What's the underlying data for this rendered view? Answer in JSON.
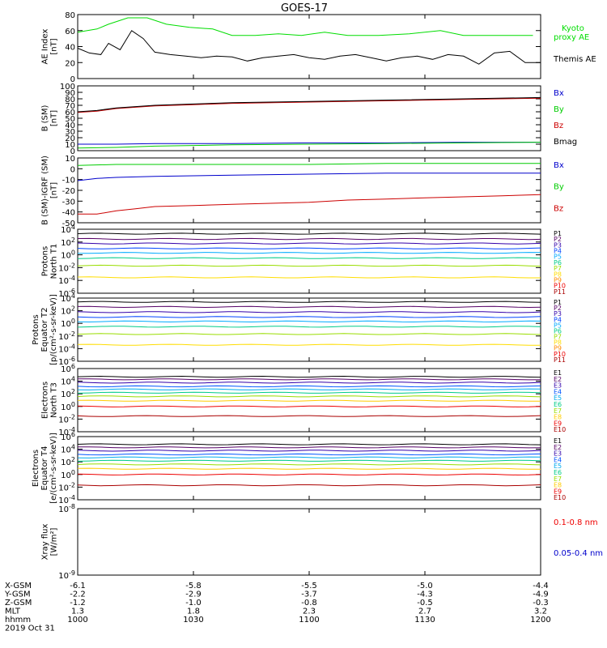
{
  "title": "GOES-17",
  "chart_data": [
    {
      "id": "ae",
      "type": "line",
      "ylabel": [
        "AE Index",
        "[nT]"
      ],
      "ylim": [
        0,
        80
      ],
      "ticks": [
        "0",
        "20",
        "40",
        "60",
        "80"
      ],
      "tick_values": [
        0,
        20,
        40,
        60,
        80
      ],
      "scale": "linear",
      "series": [
        {
          "name": "Kyoto proxy AE",
          "label": [
            "Kyoto",
            "proxy AE"
          ],
          "color": "#00dd00",
          "x": [
            0,
            5,
            8,
            13,
            18,
            23,
            29,
            35,
            40,
            46,
            52,
            58,
            64,
            70,
            78,
            86,
            94,
            100,
            108,
            118
          ],
          "y": [
            58,
            62,
            68,
            76,
            76,
            68,
            64,
            62,
            54,
            54,
            56,
            54,
            58,
            54,
            54,
            56,
            60,
            54,
            54,
            54
          ]
        },
        {
          "name": "Themis AE",
          "label": [
            "Themis AE"
          ],
          "color": "#000000",
          "x": [
            0,
            3,
            6,
            8,
            11,
            14,
            17,
            20,
            24,
            28,
            32,
            36,
            40,
            44,
            48,
            52,
            56,
            60,
            64,
            68,
            72,
            76,
            80,
            84,
            88,
            92,
            96,
            100,
            104,
            108,
            112,
            116,
            120
          ],
          "y": [
            38,
            32,
            30,
            44,
            36,
            60,
            50,
            33,
            30,
            28,
            26,
            28,
            27,
            22,
            26,
            28,
            30,
            26,
            24,
            28,
            30,
            26,
            22,
            26,
            28,
            24,
            30,
            28,
            18,
            32,
            34,
            20,
            20
          ]
        }
      ]
    },
    {
      "id": "bsm",
      "type": "line",
      "ylabel": [
        "B (SM)",
        "[nT]"
      ],
      "ylim": [
        0,
        100
      ],
      "ticks": [
        "0",
        "10",
        "20",
        "30",
        "40",
        "50",
        "60",
        "70",
        "80",
        "90",
        "100"
      ],
      "tick_values": [
        0,
        10,
        20,
        30,
        40,
        50,
        60,
        70,
        80,
        90,
        100
      ],
      "scale": "linear",
      "series": [
        {
          "name": "Bx",
          "color": "#0000cc",
          "x": [
            0,
            10,
            20,
            40,
            60,
            80,
            100,
            120
          ],
          "y": [
            10,
            10,
            11,
            11,
            12,
            12,
            13,
            13
          ]
        },
        {
          "name": "By",
          "color": "#00cc00",
          "x": [
            0,
            10,
            20,
            40,
            60,
            80,
            100,
            120
          ],
          "y": [
            4,
            5,
            7,
            9,
            10,
            11,
            12,
            13
          ]
        },
        {
          "name": "Bz",
          "color": "#cc0000",
          "x": [
            0,
            5,
            10,
            15,
            20,
            30,
            40,
            60,
            80,
            100,
            120
          ],
          "y": [
            59,
            61,
            65,
            67,
            69,
            71,
            73,
            75,
            77,
            79,
            81
          ]
        },
        {
          "name": "Bmag",
          "color": "#000000",
          "x": [
            0,
            5,
            10,
            15,
            20,
            30,
            40,
            60,
            80,
            100,
            120
          ],
          "y": [
            60,
            62,
            66,
            68,
            70,
            72,
            74,
            76,
            78,
            80,
            82
          ]
        }
      ]
    },
    {
      "id": "bigrf",
      "type": "line",
      "ylabel": [
        "B (SM)-IGRF (SM)",
        "[nT]"
      ],
      "ylim": [
        -50,
        10
      ],
      "ticks": [
        "10",
        "0",
        "-10",
        "-20",
        "-30",
        "-40",
        "-50"
      ],
      "tick_values": [
        10,
        0,
        -10,
        -20,
        -30,
        -40,
        -50
      ],
      "scale": "linear",
      "series": [
        {
          "name": "Bx",
          "color": "#0000cc",
          "x": [
            0,
            5,
            10,
            20,
            40,
            60,
            80,
            100,
            120
          ],
          "y": [
            -11,
            -9,
            -8,
            -7,
            -6,
            -5,
            -4,
            -4,
            -4
          ]
        },
        {
          "name": "By",
          "color": "#00cc00",
          "x": [
            0,
            10,
            20,
            40,
            60,
            80,
            100,
            120
          ],
          "y": [
            3,
            4,
            4,
            4,
            4,
            5,
            5,
            5
          ]
        },
        {
          "name": "Bz",
          "color": "#cc0000",
          "x": [
            0,
            5,
            10,
            15,
            20,
            30,
            40,
            50,
            60,
            70,
            80,
            90,
            100,
            110,
            120
          ],
          "y": [
            -42,
            -42,
            -39,
            -37,
            -35,
            -34,
            -33,
            -32,
            -31,
            -29,
            -28,
            -27,
            -26,
            -25,
            -24
          ]
        }
      ]
    },
    {
      "id": "protons_t1",
      "type": "line",
      "ylabel": [
        "Protons",
        "North T1"
      ],
      "ylim": [
        1e-06,
        10000.0
      ],
      "ticks": [
        "10^4",
        "10^2",
        "10^0",
        "10^-2",
        "10^-4",
        "10^-6"
      ],
      "tick_values": [
        10000.0,
        100.0,
        1.0,
        0.01,
        0.0001,
        1e-06
      ],
      "scale": "log",
      "series": [
        {
          "name": "P1",
          "color": "#000000",
          "y": [
            2000
          ]
        },
        {
          "name": "P2",
          "color": "#550066",
          "y": [
            300
          ]
        },
        {
          "name": "P3",
          "color": "#3300aa",
          "y": [
            60
          ]
        },
        {
          "name": "P4",
          "color": "#0044ff",
          "y": [
            10
          ]
        },
        {
          "name": "P5",
          "color": "#00aaff",
          "y": [
            2
          ]
        },
        {
          "name": "P6",
          "color": "#00cc88",
          "y": [
            0.3
          ]
        },
        {
          "name": "P7",
          "color": "#99dd00",
          "y": [
            0.02
          ]
        },
        {
          "name": "P8",
          "color": "#ffdd00",
          "y": [
            0.0003
          ]
        },
        {
          "name": "P9",
          "color": "#ff8800",
          "y": []
        },
        {
          "name": "P10",
          "color": "#ee0000",
          "y": []
        },
        {
          "name": "P11",
          "color": "#aa0000",
          "y": []
        }
      ]
    },
    {
      "id": "protons_t2",
      "type": "line",
      "ylabel": [
        "Protons",
        "Equator T2",
        "[p/(cm²-s-sr-keV)]"
      ],
      "ylim": [
        1e-06,
        10000.0
      ],
      "ticks": [
        "10^4",
        "10^2",
        "10^0",
        "10^-2",
        "10^-4",
        "10^-6"
      ],
      "tick_values": [
        10000.0,
        100.0,
        1.0,
        0.01,
        0.0001,
        1e-06
      ],
      "scale": "log",
      "series": [
        {
          "name": "P1",
          "color": "#000000",
          "y": [
            2500
          ]
        },
        {
          "name": "P2",
          "color": "#550066",
          "y": [
            400
          ]
        },
        {
          "name": "P3",
          "color": "#3300aa",
          "y": [
            60
          ]
        },
        {
          "name": "P4",
          "color": "#0044ff",
          "y": [
            10
          ]
        },
        {
          "name": "P5",
          "color": "#00aaff",
          "y": [
            2
          ]
        },
        {
          "name": "P6",
          "color": "#00cc88",
          "y": [
            0.3
          ]
        },
        {
          "name": "P7",
          "color": "#99dd00",
          "y": [
            0.02
          ]
        },
        {
          "name": "P8",
          "color": "#ffdd00",
          "y": [
            0.0004
          ]
        },
        {
          "name": "P9",
          "color": "#ff8800",
          "y": []
        },
        {
          "name": "P10",
          "color": "#ee0000",
          "y": []
        },
        {
          "name": "P11",
          "color": "#aa0000",
          "y": []
        }
      ]
    },
    {
      "id": "electrons_t3",
      "type": "line",
      "ylabel": [
        "Electrons",
        "North T3"
      ],
      "ylim": [
        0.0001,
        1000000.0
      ],
      "ticks": [
        "10^6",
        "10^4",
        "10^2",
        "10^0",
        "10^-2",
        "10^-4"
      ],
      "tick_values": [
        1000000.0,
        10000.0,
        100.0,
        1.0,
        0.01,
        0.0001
      ],
      "scale": "log",
      "series": [
        {
          "name": "E1",
          "color": "#000000",
          "y": [
            50000
          ]
        },
        {
          "name": "E2",
          "color": "#550066",
          "y": [
            20000
          ]
        },
        {
          "name": "E3",
          "color": "#3300aa",
          "y": [
            6000
          ]
        },
        {
          "name": "E4",
          "color": "#0055ff",
          "y": [
            1500
          ]
        },
        {
          "name": "E5",
          "color": "#00aaee",
          "y": [
            500
          ]
        },
        {
          "name": "E6",
          "color": "#00cc88",
          "y": [
            150
          ]
        },
        {
          "name": "E7",
          "color": "#99dd00",
          "y": [
            40
          ]
        },
        {
          "name": "E8",
          "color": "#ffcc00",
          "y": [
            8
          ]
        },
        {
          "name": "E9",
          "color": "#ee0000",
          "y": [
            1
          ]
        },
        {
          "name": "E10",
          "color": "#aa0000",
          "y": [
            0.03
          ]
        }
      ]
    },
    {
      "id": "electrons_t4",
      "type": "line",
      "ylabel": [
        "Electrons",
        "Equator T4",
        "[e/(cm²-s-sr-keV)]"
      ],
      "ylim": [
        0.0001,
        1000000.0
      ],
      "ticks": [
        "10^6",
        "10^4",
        "10^2",
        "10^0",
        "10^-2",
        "10^-4"
      ],
      "tick_values": [
        1000000.0,
        10000.0,
        100.0,
        1.0,
        0.01,
        0.0001
      ],
      "scale": "log",
      "series": [
        {
          "name": "E1",
          "color": "#000000",
          "y": [
            60000
          ]
        },
        {
          "name": "E2",
          "color": "#550066",
          "y": [
            20000
          ]
        },
        {
          "name": "E3",
          "color": "#3300aa",
          "y": [
            6000
          ]
        },
        {
          "name": "E4",
          "color": "#0055ff",
          "y": [
            1500
          ]
        },
        {
          "name": "E5",
          "color": "#00aaee",
          "y": [
            500
          ]
        },
        {
          "name": "E6",
          "color": "#00cc88",
          "y": [
            150
          ]
        },
        {
          "name": "E7",
          "color": "#99dd00",
          "y": [
            40
          ]
        },
        {
          "name": "E8",
          "color": "#ffcc00",
          "y": [
            8
          ]
        },
        {
          "name": "E9",
          "color": "#ee0000",
          "y": [
            1
          ]
        },
        {
          "name": "E10",
          "color": "#aa0000",
          "y": [
            0.02
          ]
        }
      ]
    },
    {
      "id": "xray",
      "type": "line",
      "ylabel": [
        "Xray flux",
        "[W/m²]"
      ],
      "ylim": [
        1e-09,
        1e-08
      ],
      "ticks": [
        "10^-8",
        "10^-9"
      ],
      "tick_values": [
        1e-08,
        1e-09
      ],
      "scale": "log",
      "series": [
        {
          "name": "0.1-0.8 nm",
          "color": "#ee0000",
          "segments": []
        },
        {
          "name": "0.05-0.4 nm",
          "color": "#0000cc",
          "segments": []
        }
      ]
    }
  ],
  "x_axis": {
    "ticks_hhmm": [
      "1000",
      "1030",
      "1100",
      "1130",
      "1200"
    ],
    "rows": [
      {
        "label": "X-GSM",
        "values": [
          "-6.1",
          "-5.8",
          "-5.5",
          "-5.0",
          "-4.4"
        ]
      },
      {
        "label": "Y-GSM",
        "values": [
          "-2.2",
          "-2.9",
          "-3.7",
          "-4.3",
          "-4.9"
        ]
      },
      {
        "label": "Z-GSM",
        "values": [
          "-1.2",
          "-1.0",
          "-0.8",
          "-0.5",
          "-0.3"
        ]
      },
      {
        "label": "MLT",
        "values": [
          "1.3",
          "1.8",
          "2.3",
          "2.7",
          "3.2"
        ]
      },
      {
        "label": "hhmm",
        "values": [
          "1000",
          "1030",
          "1100",
          "1130",
          "1200"
        ]
      }
    ],
    "date": "2019 Oct 31"
  }
}
